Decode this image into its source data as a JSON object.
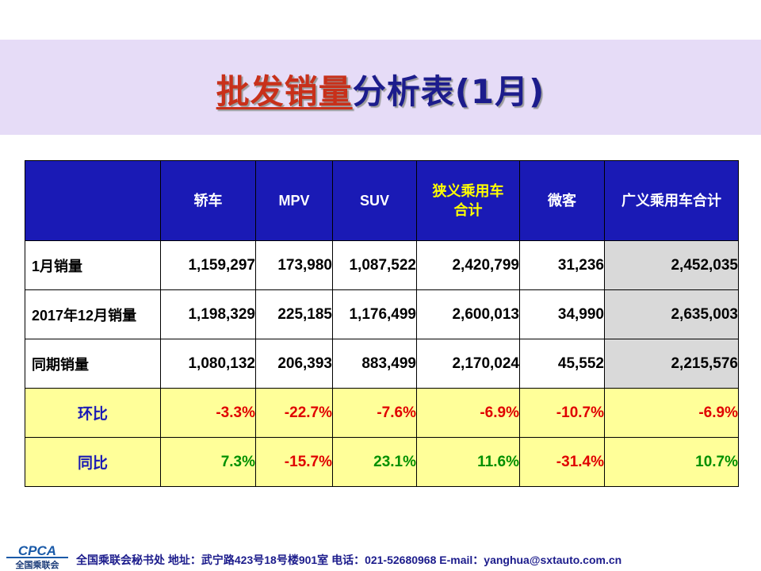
{
  "title": {
    "highlight": "批发销量",
    "rest": "分析表(1月)"
  },
  "table": {
    "headers": [
      "",
      "轿车",
      "MPV",
      "SUV",
      "狭义乘用车合计",
      "微客",
      "广义乘用车合计"
    ],
    "rows": [
      {
        "label": "1月销量",
        "cells": [
          "1,159,297",
          "173,980",
          "1,087,522",
          "2,420,799",
          "31,236",
          "2,452,035"
        ]
      },
      {
        "label": "2017年12月销量",
        "cells": [
          "1,198,329",
          "225,185",
          "1,176,499",
          "2,600,013",
          "34,990",
          "2,635,003"
        ]
      },
      {
        "label": "同期销量",
        "cells": [
          "1,080,132",
          "206,393",
          "883,499",
          "2,170,024",
          "45,552",
          "2,215,576"
        ]
      },
      {
        "label": "环比",
        "cells": [
          "-3.3%",
          "-22.7%",
          "-7.6%",
          "-6.9%",
          "-10.7%",
          "-6.9%"
        ]
      },
      {
        "label": "同比",
        "cells": [
          "7.3%",
          "-15.7%",
          "23.1%",
          "11.6%",
          "-31.4%",
          "10.7%"
        ]
      }
    ]
  },
  "colors": {
    "header_bg": "#1a1ab5",
    "ratio_bg": "#ffff99",
    "negative": "#e00000",
    "positive": "#009000",
    "banner": "#e6dcf7"
  },
  "footer": {
    "logo_text": "CPCA",
    "logo_sub": "全国乘联会",
    "info": "全国乘联会秘书处  地址：武宁路423号18号楼901室    电话：021-52680968   E-mail：yanghua@sxtauto.com.cn"
  }
}
